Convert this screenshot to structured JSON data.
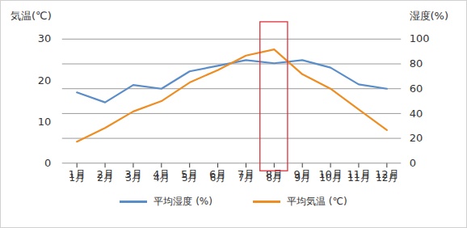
{
  "chart_data": {
    "type": "line",
    "ylabel": "気温(℃)",
    "y2label": "湿度(%)",
    "categories": [
      "1月",
      "2月",
      "3月",
      "4月",
      "5月",
      "6月",
      "7月",
      "8月",
      "9月",
      "10月",
      "11月",
      "12月"
    ],
    "series": [
      {
        "name": "平均湿度 (%)",
        "color": "#5b8dc8",
        "axis": "y2",
        "values": [
          57,
          49,
          63,
          60,
          74,
          78.5,
          83,
          80.5,
          83,
          77,
          63.5,
          60
        ]
      },
      {
        "name": "平均気温 (℃)",
        "color": "#ee8d22",
        "values": [
          5.2,
          8.5,
          12.5,
          15,
          19.5,
          22.5,
          26,
          27.5,
          21.5,
          18,
          13,
          8
        ]
      }
    ],
    "ylim": [
      0,
      30
    ],
    "yticks": [
      0,
      10,
      20,
      30
    ],
    "y2lim": [
      0,
      100
    ],
    "y2ticks": [
      0,
      20,
      40,
      60,
      80,
      100
    ],
    "grid": true,
    "legend": "bottom",
    "highlight": "8月"
  }
}
